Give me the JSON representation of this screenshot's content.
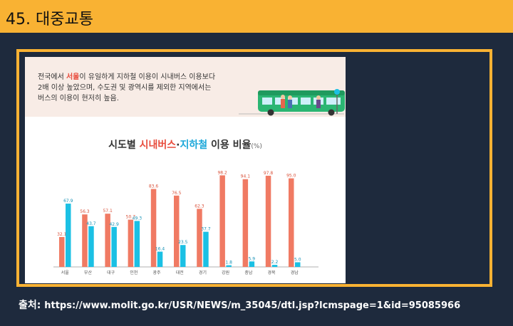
{
  "slide": {
    "title": "45. 대중교통",
    "source_label": "출처:",
    "source_url": "https://www.molit.go.kr/USR/NEWS/m_35045/dtl.jsp?lcmspage=1&id=95085966"
  },
  "intro": {
    "line1_pre": "전국에서 ",
    "line1_hl": "서울",
    "line1_post": "이 유일하게 지하철 이용이 시내버스 이용보다",
    "line2": "2배 이상 높았으며, 수도권 및 광역시를 제외한 지역에서는",
    "line3": "버스의 이용이 현저히 높음."
  },
  "chart_title": {
    "pre": "시도별 ",
    "bus": "시내버스",
    "dot": "·",
    "subway": "지하철",
    "post": " 이용 비율",
    "unit": "(%)"
  },
  "colors": {
    "bus": "#f07a63",
    "subway": "#1bc0e4",
    "accent": "#f9b233",
    "background": "#1e2a3d"
  },
  "chart_data": {
    "type": "bar",
    "categories": [
      "서울",
      "부산",
      "대구",
      "인천",
      "광주",
      "대전",
      "경기",
      "강원",
      "충남",
      "경북",
      "경남"
    ],
    "series": [
      {
        "name": "시내버스",
        "values": [
          32.1,
          56.3,
          57.1,
          50.7,
          83.6,
          76.5,
          62.3,
          98.2,
          94.1,
          97.8,
          95.0
        ]
      },
      {
        "name": "지하철",
        "values": [
          67.9,
          43.7,
          42.9,
          49.3,
          16.4,
          23.5,
          37.7,
          1.8,
          5.9,
          2.2,
          5.0
        ]
      }
    ],
    "ylim": [
      0,
      100
    ]
  }
}
